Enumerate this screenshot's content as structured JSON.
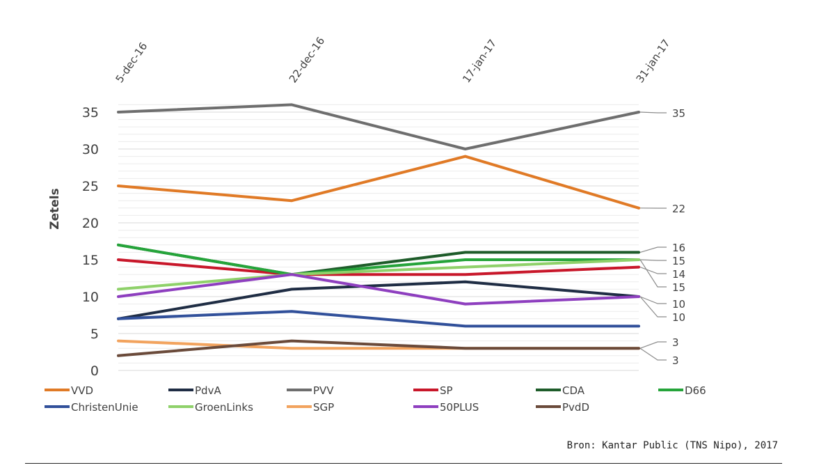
{
  "chart_data": {
    "type": "line",
    "title": "",
    "ylabel": "Zetels",
    "xlabel": "",
    "x": [
      "5-dec-16",
      "22-dec-16",
      "17-jan-17",
      "31-jan-17"
    ],
    "ylim": [
      0,
      35
    ],
    "yticks": [
      0,
      5,
      10,
      15,
      20,
      25,
      30,
      35
    ],
    "series": [
      {
        "name": "VVD",
        "color": "#e07a26",
        "values": [
          25,
          23,
          29,
          22
        ]
      },
      {
        "name": "PdvA",
        "color": "#1f2d44",
        "values": [
          7,
          11,
          12,
          10
        ]
      },
      {
        "name": "PVV",
        "color": "#6e6e6e",
        "values": [
          35,
          36,
          30,
          35
        ]
      },
      {
        "name": "SP",
        "color": "#c8172a",
        "values": [
          15,
          13,
          13,
          14
        ]
      },
      {
        "name": "CDA",
        "color": "#1e5c2a",
        "values": [
          17,
          13,
          16,
          16
        ]
      },
      {
        "name": "D66",
        "color": "#25a43a",
        "values": [
          17,
          13,
          15,
          15
        ]
      },
      {
        "name": "ChristenUnie",
        "color": "#31509a",
        "values": [
          7,
          8,
          6,
          6
        ]
      },
      {
        "name": "GroenLinks",
        "color": "#8fd16a",
        "values": [
          11,
          13,
          14,
          15
        ]
      },
      {
        "name": "SGP",
        "color": "#f2a35e",
        "values": [
          4,
          3,
          3,
          3
        ]
      },
      {
        "name": "50PLUS",
        "color": "#8e3fbf",
        "values": [
          10,
          13,
          9,
          10
        ]
      },
      {
        "name": "PvdD",
        "color": "#6a4a3a",
        "values": [
          2,
          4,
          3,
          3
        ]
      }
    ],
    "end_labels": [
      {
        "text": "35",
        "value": 35
      },
      {
        "text": "22",
        "value": 22
      },
      {
        "text": "16",
        "value": 16
      },
      {
        "text": "15",
        "value": 15
      },
      {
        "text": "14",
        "value": 14
      },
      {
        "text": "15",
        "value": 15
      },
      {
        "text": "10",
        "value": 10
      },
      {
        "text": "10",
        "value": 10
      },
      {
        "text": "3",
        "value": 3
      },
      {
        "text": "3",
        "value": 3
      }
    ],
    "legend_position": "bottom",
    "grid": true
  },
  "source": "Bron: Kantar Public (TNS Nipo), 2017"
}
